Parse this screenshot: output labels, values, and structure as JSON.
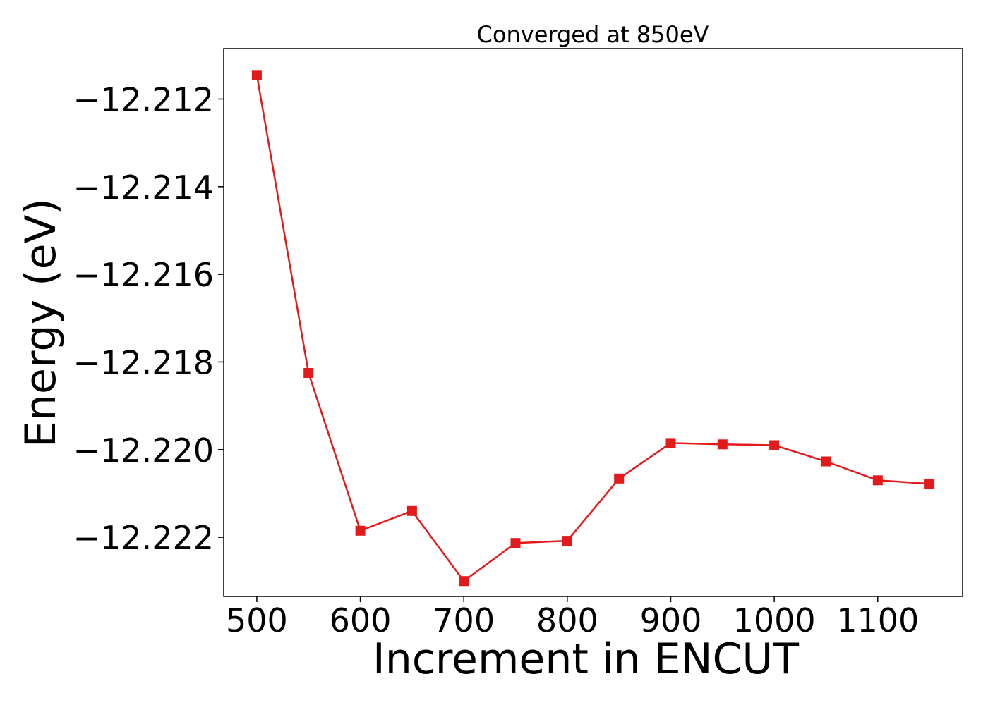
{
  "chart_data": {
    "type": "line",
    "title": "Converged at 850eV",
    "xlabel": "Increment in ENCUT",
    "ylabel": "Energy (eV)",
    "x": [
      500,
      550,
      600,
      650,
      700,
      750,
      800,
      850,
      900,
      950,
      1000,
      1050,
      1100,
      1150
    ],
    "series": [
      {
        "values": [
          -12.21145,
          -12.21825,
          -12.22185,
          -12.2214,
          -12.223,
          -12.22213,
          -12.22208,
          -12.22066,
          -12.21985,
          -12.21988,
          -12.2199,
          -12.22027,
          -12.2207,
          -12.22078
        ],
        "color": "#e31a1c",
        "marker": "square"
      }
    ],
    "xlim": [
      468,
      1182
    ],
    "ylim": [
      -12.22335,
      -12.21085
    ],
    "xticks": [
      500,
      600,
      700,
      800,
      900,
      1000,
      1100
    ],
    "xtick_labels": [
      "500",
      "600",
      "700",
      "800",
      "900",
      "1000",
      "1100"
    ],
    "yticks": [
      -12.212,
      -12.214,
      -12.216,
      -12.218,
      -12.22,
      -12.222
    ],
    "ytick_labels": [
      "−12.212",
      "−12.214",
      "−12.216",
      "−12.218",
      "−12.220",
      "−12.222"
    ],
    "grid": false,
    "legend": false
  }
}
